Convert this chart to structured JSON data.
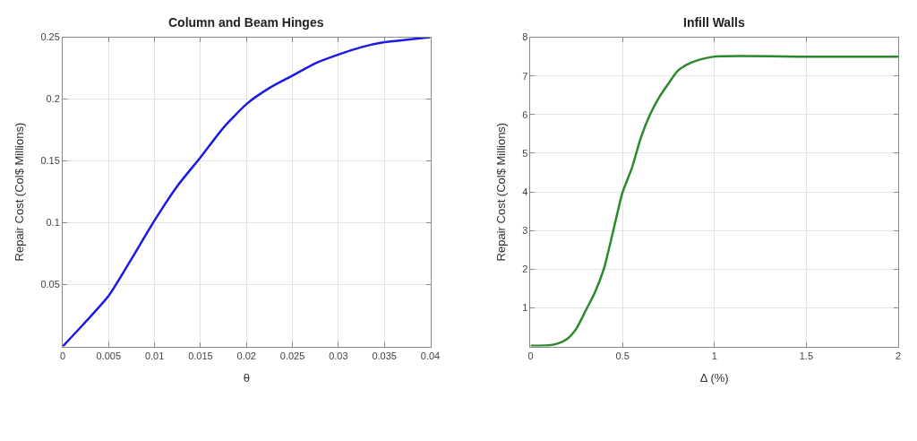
{
  "chart_data": [
    {
      "type": "line",
      "title": "Column and Beam Hinges",
      "xlabel": "θ",
      "ylabel": "Repair Cost (Col$ Millions)",
      "xlim": [
        0,
        0.04
      ],
      "xticks": [
        0,
        0.005,
        0.01,
        0.015,
        0.02,
        0.025,
        0.03,
        0.035,
        0.04
      ],
      "ylim": [
        0,
        0.25
      ],
      "yticks": [
        0.05,
        0.1,
        0.15,
        0.2,
        0.25
      ],
      "grid": true,
      "x": [
        0,
        0.0025,
        0.005,
        0.0075,
        0.01,
        0.0125,
        0.015,
        0.0175,
        0.02,
        0.0225,
        0.025,
        0.0275,
        0.03,
        0.0325,
        0.035,
        0.0375,
        0.04
      ],
      "series": [
        {
          "color": "#1a1ae6",
          "values": [
            0,
            0.02,
            0.041,
            0.071,
            0.102,
            0.13,
            0.153,
            0.177,
            0.196,
            0.209,
            0.219,
            0.229,
            0.236,
            0.242,
            0.246,
            0.248,
            0.25
          ]
        }
      ]
    },
    {
      "type": "line",
      "title": "Infill Walls",
      "xlabel": "Δ (%)",
      "ylabel": "Repair Cost (Col$ Millions)",
      "xlim": [
        0,
        2
      ],
      "xticks": [
        0,
        0.5,
        1,
        1.5,
        2
      ],
      "ylim": [
        0,
        8
      ],
      "yticks": [
        1,
        2,
        3,
        4,
        5,
        6,
        7,
        8
      ],
      "grid": true,
      "x": [
        0,
        0.1,
        0.15,
        0.2,
        0.25,
        0.3,
        0.35,
        0.4,
        0.45,
        0.5,
        0.55,
        0.6,
        0.65,
        0.7,
        0.75,
        0.8,
        0.85,
        0.9,
        1.0,
        1.5,
        2
      ],
      "series": [
        {
          "color": "#2a8a2a",
          "values": [
            0.02,
            0.03,
            0.08,
            0.2,
            0.47,
            0.93,
            1.4,
            2.03,
            3.0,
            3.98,
            4.6,
            5.4,
            6.0,
            6.45,
            6.8,
            7.13,
            7.29,
            7.39,
            7.5,
            7.5,
            7.5
          ]
        }
      ]
    }
  ]
}
